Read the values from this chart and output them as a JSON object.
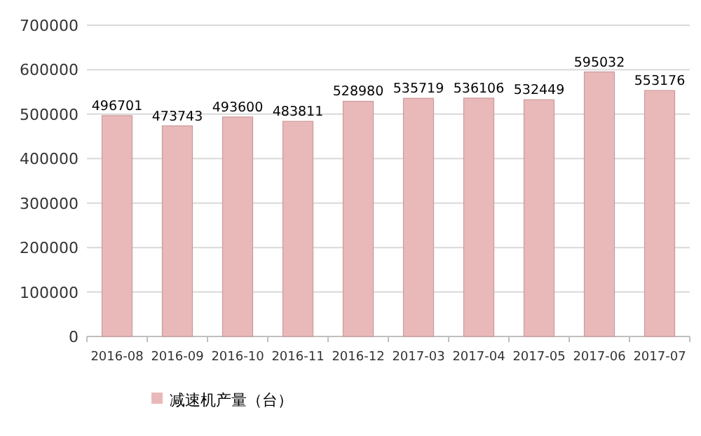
{
  "chart_data": {
    "type": "bar",
    "categories": [
      "2016-08",
      "2016-09",
      "2016-10",
      "2016-11",
      "2016-12",
      "2017-03",
      "2017-04",
      "2017-05",
      "2017-06",
      "2017-07"
    ],
    "series": [
      {
        "name": "减速机产量（台）",
        "color": "#e9b9b9",
        "values": [
          496701,
          473743,
          493600,
          483811,
          528980,
          535719,
          536106,
          532449,
          595032,
          553176
        ]
      }
    ],
    "ylim": [
      0,
      700000
    ],
    "yticks": [
      0,
      100000,
      200000,
      300000,
      400000,
      500000,
      600000,
      700000
    ],
    "grid": "y",
    "data_labels": true,
    "legend": "bottom"
  }
}
